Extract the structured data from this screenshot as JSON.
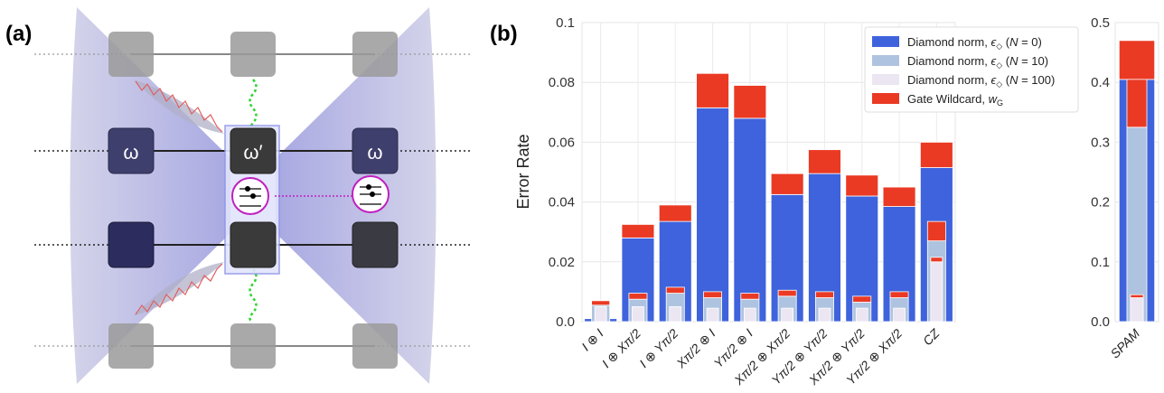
{
  "panel_a": {
    "label": "(a)",
    "box_labels": {
      "left": "ω",
      "center": "ω′",
      "right": "ω"
    }
  },
  "chart_data": {
    "label": "(b)",
    "ylabel": "Error Rate",
    "left_panel": {
      "type": "bar",
      "stacked": true,
      "ylim": [
        0,
        0.1
      ],
      "yticks": [
        "0.0",
        "0.02",
        "0.04",
        "0.06",
        "0.08",
        "0.1"
      ],
      "grid": true,
      "categories": [
        "I ⊕ I",
        "I ⊕ Xπ/2",
        "I ⊕ Yπ/2",
        "Xπ/2 ⊕ I",
        "Yπ/2 ⊕ I",
        "Xπ/2 ⊕ Xπ/2",
        "Yπ/2 ⊕ Yπ/2",
        "Xπ/2 ⊕ Yπ/2",
        "Yπ/2 ⊕ Xπ/2",
        "CZ"
      ],
      "groups": [
        {
          "N": 0,
          "diamond": [
            0.001,
            0.028,
            0.0335,
            0.0715,
            0.068,
            0.0425,
            0.0495,
            0.042,
            0.0385,
            0.0515
          ],
          "wildcard": [
            0,
            0.0045,
            0.0055,
            0.0115,
            0.011,
            0.007,
            0.008,
            0.007,
            0.0065,
            0.0085
          ]
        },
        {
          "N": 10,
          "diamond": [
            0.0055,
            0.0075,
            0.0095,
            0.008,
            0.0075,
            0.0085,
            0.008,
            0.0065,
            0.008,
            0.027
          ],
          "wildcard": [
            0.0015,
            0.002,
            0.002,
            0.002,
            0.002,
            0.002,
            0.002,
            0.002,
            0.002,
            0.0065
          ]
        },
        {
          "N": 100,
          "diamond": [
            0.005,
            0.005,
            0.005,
            0.0045,
            0.0045,
            0.0045,
            0.0045,
            0.0045,
            0.0045,
            0.02
          ],
          "wildcard": [
            0,
            0,
            0,
            0,
            0,
            0,
            0,
            0,
            0,
            0.0015
          ]
        }
      ]
    },
    "right_panel": {
      "type": "bar",
      "stacked": true,
      "ylim": [
        0,
        0.5
      ],
      "yticks": [
        "0.0",
        "0.1",
        "0.2",
        "0.3",
        "0.4",
        "0.5"
      ],
      "categories": [
        "SPAM"
      ],
      "groups": [
        {
          "N": 0,
          "diamond": [
            0.405
          ],
          "wildcard": [
            0.065
          ]
        },
        {
          "N": 10,
          "diamond": [
            0.325
          ],
          "wildcard": [
            0.08
          ]
        },
        {
          "N": 100,
          "diamond": [
            0.04
          ],
          "wildcard": [
            0.005
          ]
        }
      ]
    },
    "legend": {
      "placement": "top-right",
      "entries": [
        {
          "pre": "Diamond norm, ",
          "sym": "ϵ",
          "sub": "◇",
          "post": " (",
          "var": "N",
          "eq": " = 0)"
        },
        {
          "pre": "Diamond norm, ",
          "sym": "ϵ",
          "sub": "◇",
          "post": " (",
          "var": "N",
          "eq": " = 10)"
        },
        {
          "pre": "Diamond norm, ",
          "sym": "ϵ",
          "sub": "◇",
          "post": " (",
          "var": "N",
          "eq": " = 100)"
        },
        {
          "pre": "Gate Wildcard, ",
          "sym": "w",
          "sub": "G",
          "post": "",
          "var": "",
          "eq": ""
        }
      ]
    },
    "colors": {
      "n0": "#3f63dc",
      "n10": "#aec3df",
      "n100": "#ebe6f2",
      "wildcard": "#ea3a24"
    }
  }
}
